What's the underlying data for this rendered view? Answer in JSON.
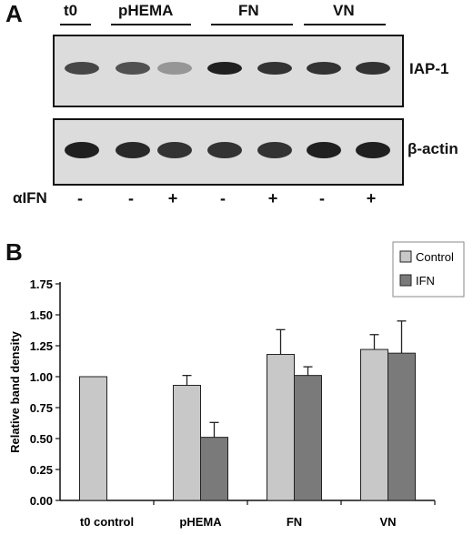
{
  "panel_a": {
    "label": "A",
    "groups": [
      "t0",
      "pHEMA",
      "FN",
      "VN"
    ],
    "blots": [
      {
        "name": "IAP-1",
        "bands": [
          0.75,
          0.7,
          0.35,
          0.95,
          0.85,
          0.85,
          0.85
        ]
      },
      {
        "name": "β-actin",
        "bands": [
          0.95,
          0.9,
          0.85,
          0.85,
          0.85,
          0.95,
          0.95
        ]
      }
    ],
    "treatment_label": "αIFN",
    "treatment": [
      "-",
      "-",
      "+",
      "-",
      "+",
      "-",
      "+"
    ]
  },
  "panel_b": {
    "label": "B"
  },
  "chart_data": {
    "type": "bar",
    "categories": [
      "t0 control",
      "pHEMA",
      "FN",
      "VN"
    ],
    "series": [
      {
        "name": "Control",
        "color": "#c8c8c8",
        "values": [
          1.0,
          0.93,
          1.18,
          1.22
        ],
        "errors": [
          null,
          0.08,
          0.2,
          0.12
        ]
      },
      {
        "name": "IFN",
        "color": "#7a7a7a",
        "values": [
          null,
          0.51,
          1.01,
          1.19
        ],
        "errors": [
          null,
          0.12,
          0.07,
          0.26
        ]
      }
    ],
    "ylabel": "Relative band density",
    "ylim": [
      0,
      1.75
    ],
    "yticks": [
      "0.00",
      "0.25",
      "0.50",
      "0.75",
      "1.00",
      "1.25",
      "1.50",
      "1.75"
    ],
    "legend_position": "top-right",
    "grid": false
  }
}
